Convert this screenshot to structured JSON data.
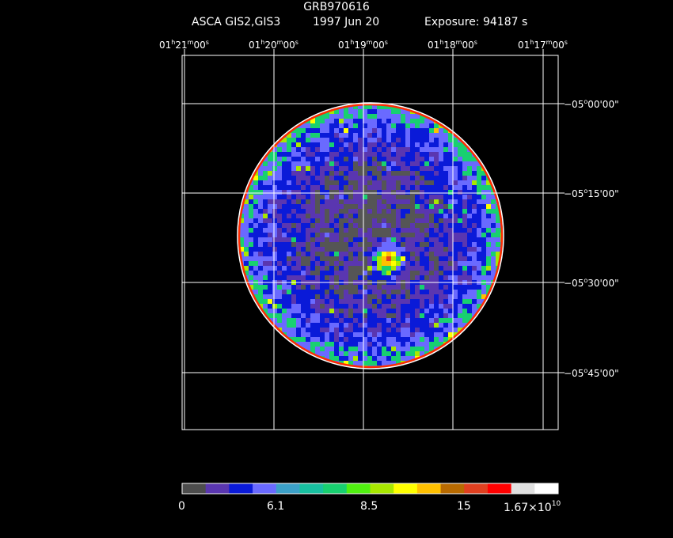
{
  "title": "GRB970616",
  "subtitle": {
    "instrument": "ASCA GIS2,GIS3",
    "date": "1997 Jun 20",
    "exposure": "Exposure: 94187 s"
  },
  "ra_labels": [
    {
      "h": "01",
      "m": "21",
      "s": "00"
    },
    {
      "h": "01",
      "m": "20",
      "s": "00"
    },
    {
      "h": "01",
      "m": "19",
      "s": "00"
    },
    {
      "h": "01",
      "m": "18",
      "s": "00"
    },
    {
      "h": "01",
      "m": "17",
      "s": "00"
    }
  ],
  "dec_labels": [
    {
      "d": "−05",
      "m": "00",
      "s": "00"
    },
    {
      "d": "−05",
      "m": "15",
      "s": "00"
    },
    {
      "d": "−05",
      "m": "30",
      "s": "00"
    },
    {
      "d": "−05",
      "m": "45",
      "s": "00"
    }
  ],
  "colorbar": {
    "colors": [
      "#4d4d4d",
      "#5a36b0",
      "#0a1ad8",
      "#6a6aff",
      "#3ca0c8",
      "#18c0a0",
      "#18d070",
      "#50f010",
      "#a8e800",
      "#ffff00",
      "#ffc000",
      "#b86a00",
      "#e04020",
      "#ff0000",
      "#e0e0e0",
      "#ffffff"
    ],
    "labels": {
      "l0": "0",
      "l1": "6.1",
      "l2": "8.5",
      "l3": "15",
      "l4_mant": "1.67×10",
      "l4_exp": "10"
    }
  },
  "image_palette": {
    "background": "#555555",
    "levels": [
      "#555555",
      "#5a36b0",
      "#0a1ad8",
      "#6a6aff",
      "#18d070",
      "#a8e800",
      "#ffff00",
      "#ffc000",
      "#e04020"
    ]
  }
}
